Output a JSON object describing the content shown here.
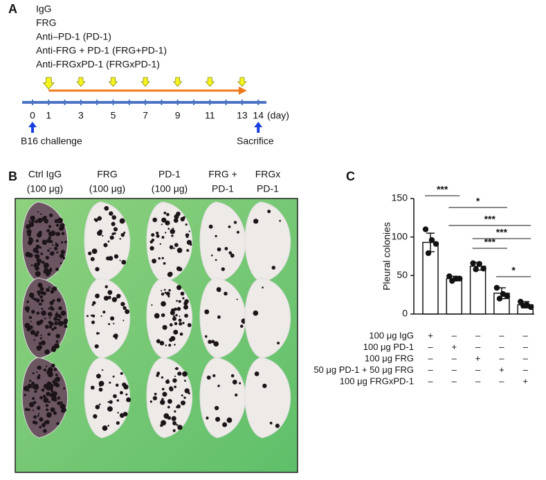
{
  "panel_a": {
    "label": "A",
    "groups": [
      "IgG",
      "FRG",
      "Anti–PD-1 (PD-1)",
      "Anti-FRG + PD-1 (FRG+PD-1)",
      "Anti-FRGxPD-1 (FRGxPD-1)"
    ],
    "days": [
      0,
      1,
      3,
      5,
      7,
      9,
      11,
      13,
      14
    ],
    "day_unit": "(day)",
    "injection_days": [
      1,
      3,
      5,
      7,
      9,
      11,
      13
    ],
    "start_label": "B16  challenge",
    "end_label": "Sacrifice"
  },
  "panel_b": {
    "label": "B",
    "columns": [
      [
        "Ctrl IgG",
        "(100 μg)"
      ],
      [
        "FRG",
        "(100 μg)"
      ],
      [
        "PD-1",
        "(100 μg)"
      ],
      [
        "FRG +",
        "PD-1"
      ],
      [
        "FRGx",
        "PD-1"
      ]
    ]
  },
  "chart_data": {
    "type": "bar",
    "panel_label": "C",
    "y_label": "Pleural colonies",
    "categories": [
      null,
      null,
      null,
      null,
      null
    ],
    "values": [
      93,
      46,
      62,
      27,
      12
    ],
    "errors": [
      12,
      3,
      5,
      7,
      4
    ],
    "points": [
      [
        110,
        96,
        91,
        79
      ],
      [
        49,
        46,
        46,
        43
      ],
      [
        66,
        65,
        59,
        58
      ],
      [
        34,
        26,
        23,
        20
      ],
      [
        16,
        12,
        9,
        11
      ]
    ],
    "color": "#ffffff",
    "ylim": [
      0,
      150
    ],
    "yticks": [
      0,
      50,
      100,
      150
    ],
    "significance": [
      "***",
      "*",
      "***",
      "***",
      "***",
      "*"
    ],
    "treatments": [
      {
        "label": "100 μg IgG",
        "signs": [
          "+",
          "–",
          "–",
          "–",
          "–"
        ]
      },
      {
        "label": "100 μg PD-1",
        "signs": [
          "–",
          "+",
          "–",
          "–",
          "–"
        ]
      },
      {
        "label": "100 μg FRG",
        "signs": [
          "–",
          "–",
          "+",
          "–",
          "–"
        ]
      },
      {
        "label": "50 μg PD-1 + 50 μg FRG",
        "signs": [
          "–",
          "–",
          "–",
          "+",
          "–"
        ]
      },
      {
        "label": "100 μg FRGxPD-1",
        "signs": [
          "–",
          "–",
          "–",
          "–",
          "+"
        ]
      }
    ]
  }
}
